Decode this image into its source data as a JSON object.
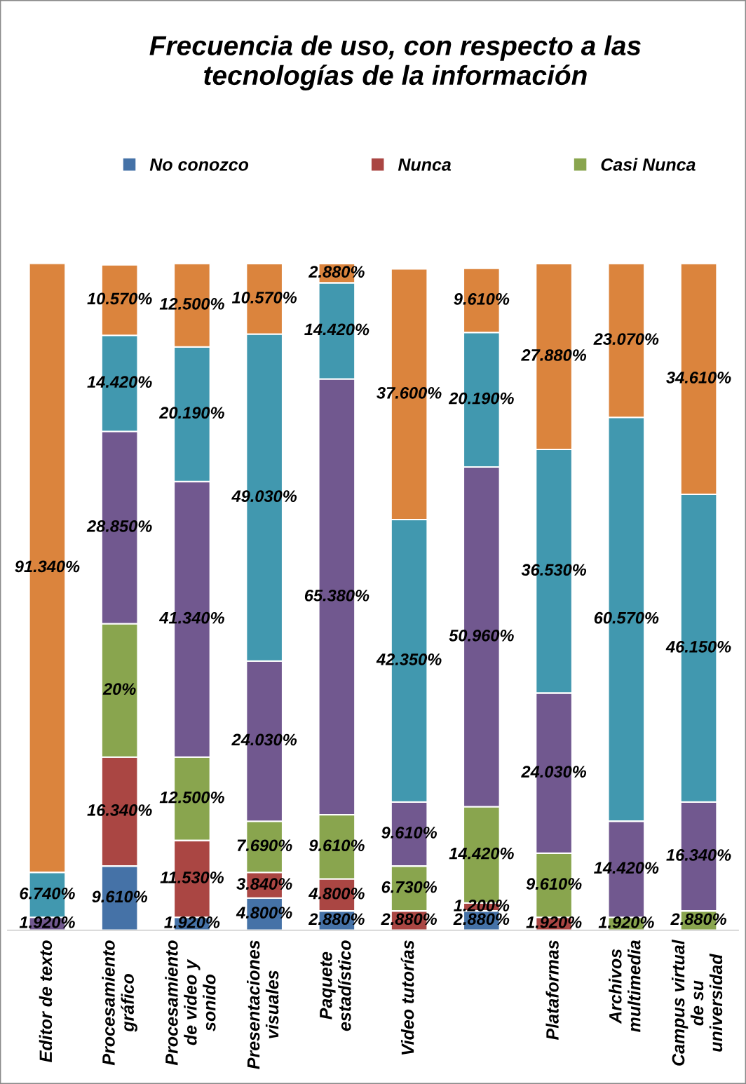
{
  "chart_data": {
    "type": "bar",
    "stacked": true,
    "title": "Frecuencia de uso, con respecto a las\ntecnologías de la información",
    "categories": [
      "Editor de texto",
      "Procesamiento\ngráfico",
      "Procesamiento\nde video y\nsonido",
      "Presentaciones\nvisuales",
      "Paquete\nestadístico",
      "Video tutorías",
      null,
      "Plataformas",
      "Archivos\nmultimedia",
      "Campus virtual\nde su\nuniversidad"
    ],
    "series": [
      {
        "name": "No conozco",
        "color": "#4572a7",
        "values": [
          null,
          9.61,
          1.92,
          4.8,
          2.88,
          null,
          2.88,
          null,
          null,
          null
        ],
        "value_labels": [
          null,
          "9.610%",
          "1.920%",
          "4.800%",
          "2.880%",
          null,
          "2.880%",
          null,
          null,
          null
        ]
      },
      {
        "name": "Nunca",
        "color": "#aa4643",
        "values": [
          null,
          16.34,
          11.53,
          3.84,
          4.8,
          2.88,
          1.2,
          1.92,
          null,
          null
        ],
        "value_labels": [
          null,
          "16.340%",
          "11.530%",
          "3.840%",
          "4.800%",
          "2.880%",
          "1.200%",
          "1.920%",
          null,
          null
        ]
      },
      {
        "name": "Casi Nunca",
        "color": "#89a54e",
        "values": [
          null,
          20,
          12.5,
          7.69,
          9.61,
          6.73,
          14.42,
          9.61,
          1.92,
          2.88
        ],
        "value_labels": [
          null,
          "20%",
          "12.500%",
          "7.690%",
          "9.610%",
          "6.730%",
          "14.420%",
          "9.610%",
          "1.920%",
          "2.880%"
        ]
      },
      {
        "color": "#71588f",
        "values": [
          1.92,
          28.85,
          41.34,
          24.03,
          65.38,
          9.61,
          50.96,
          24.03,
          14.42,
          16.34
        ],
        "value_labels": [
          "1.920%",
          "28.850%",
          "41.340%",
          "24.030%",
          "65.380%",
          "9.610%",
          "50.960%",
          "24.030%",
          "14.420%",
          "16.340%"
        ]
      },
      {
        "color": "#4198af",
        "values": [
          6.74,
          14.42,
          20.19,
          49.03,
          14.42,
          42.35,
          20.19,
          36.53,
          60.57,
          46.15
        ],
        "value_labels": [
          "6.740%",
          "14.420%",
          "20.190%",
          "49.030%",
          "14.420%",
          "42.350%",
          "20.190%",
          "36.530%",
          "60.570%",
          "46.150%"
        ]
      },
      {
        "color": "#db843d",
        "values": [
          91.34,
          10.57,
          12.5,
          10.57,
          2.88,
          37.6,
          9.61,
          27.88,
          23.07,
          34.61
        ],
        "value_labels": [
          "91.340%",
          "10.570%",
          "12.500%",
          "10.570%",
          "2.880%",
          "37.600%",
          "9.610%",
          "27.880%",
          "23.070%",
          "34.610%"
        ]
      }
    ],
    "legend": "top",
    "grid": false
  }
}
